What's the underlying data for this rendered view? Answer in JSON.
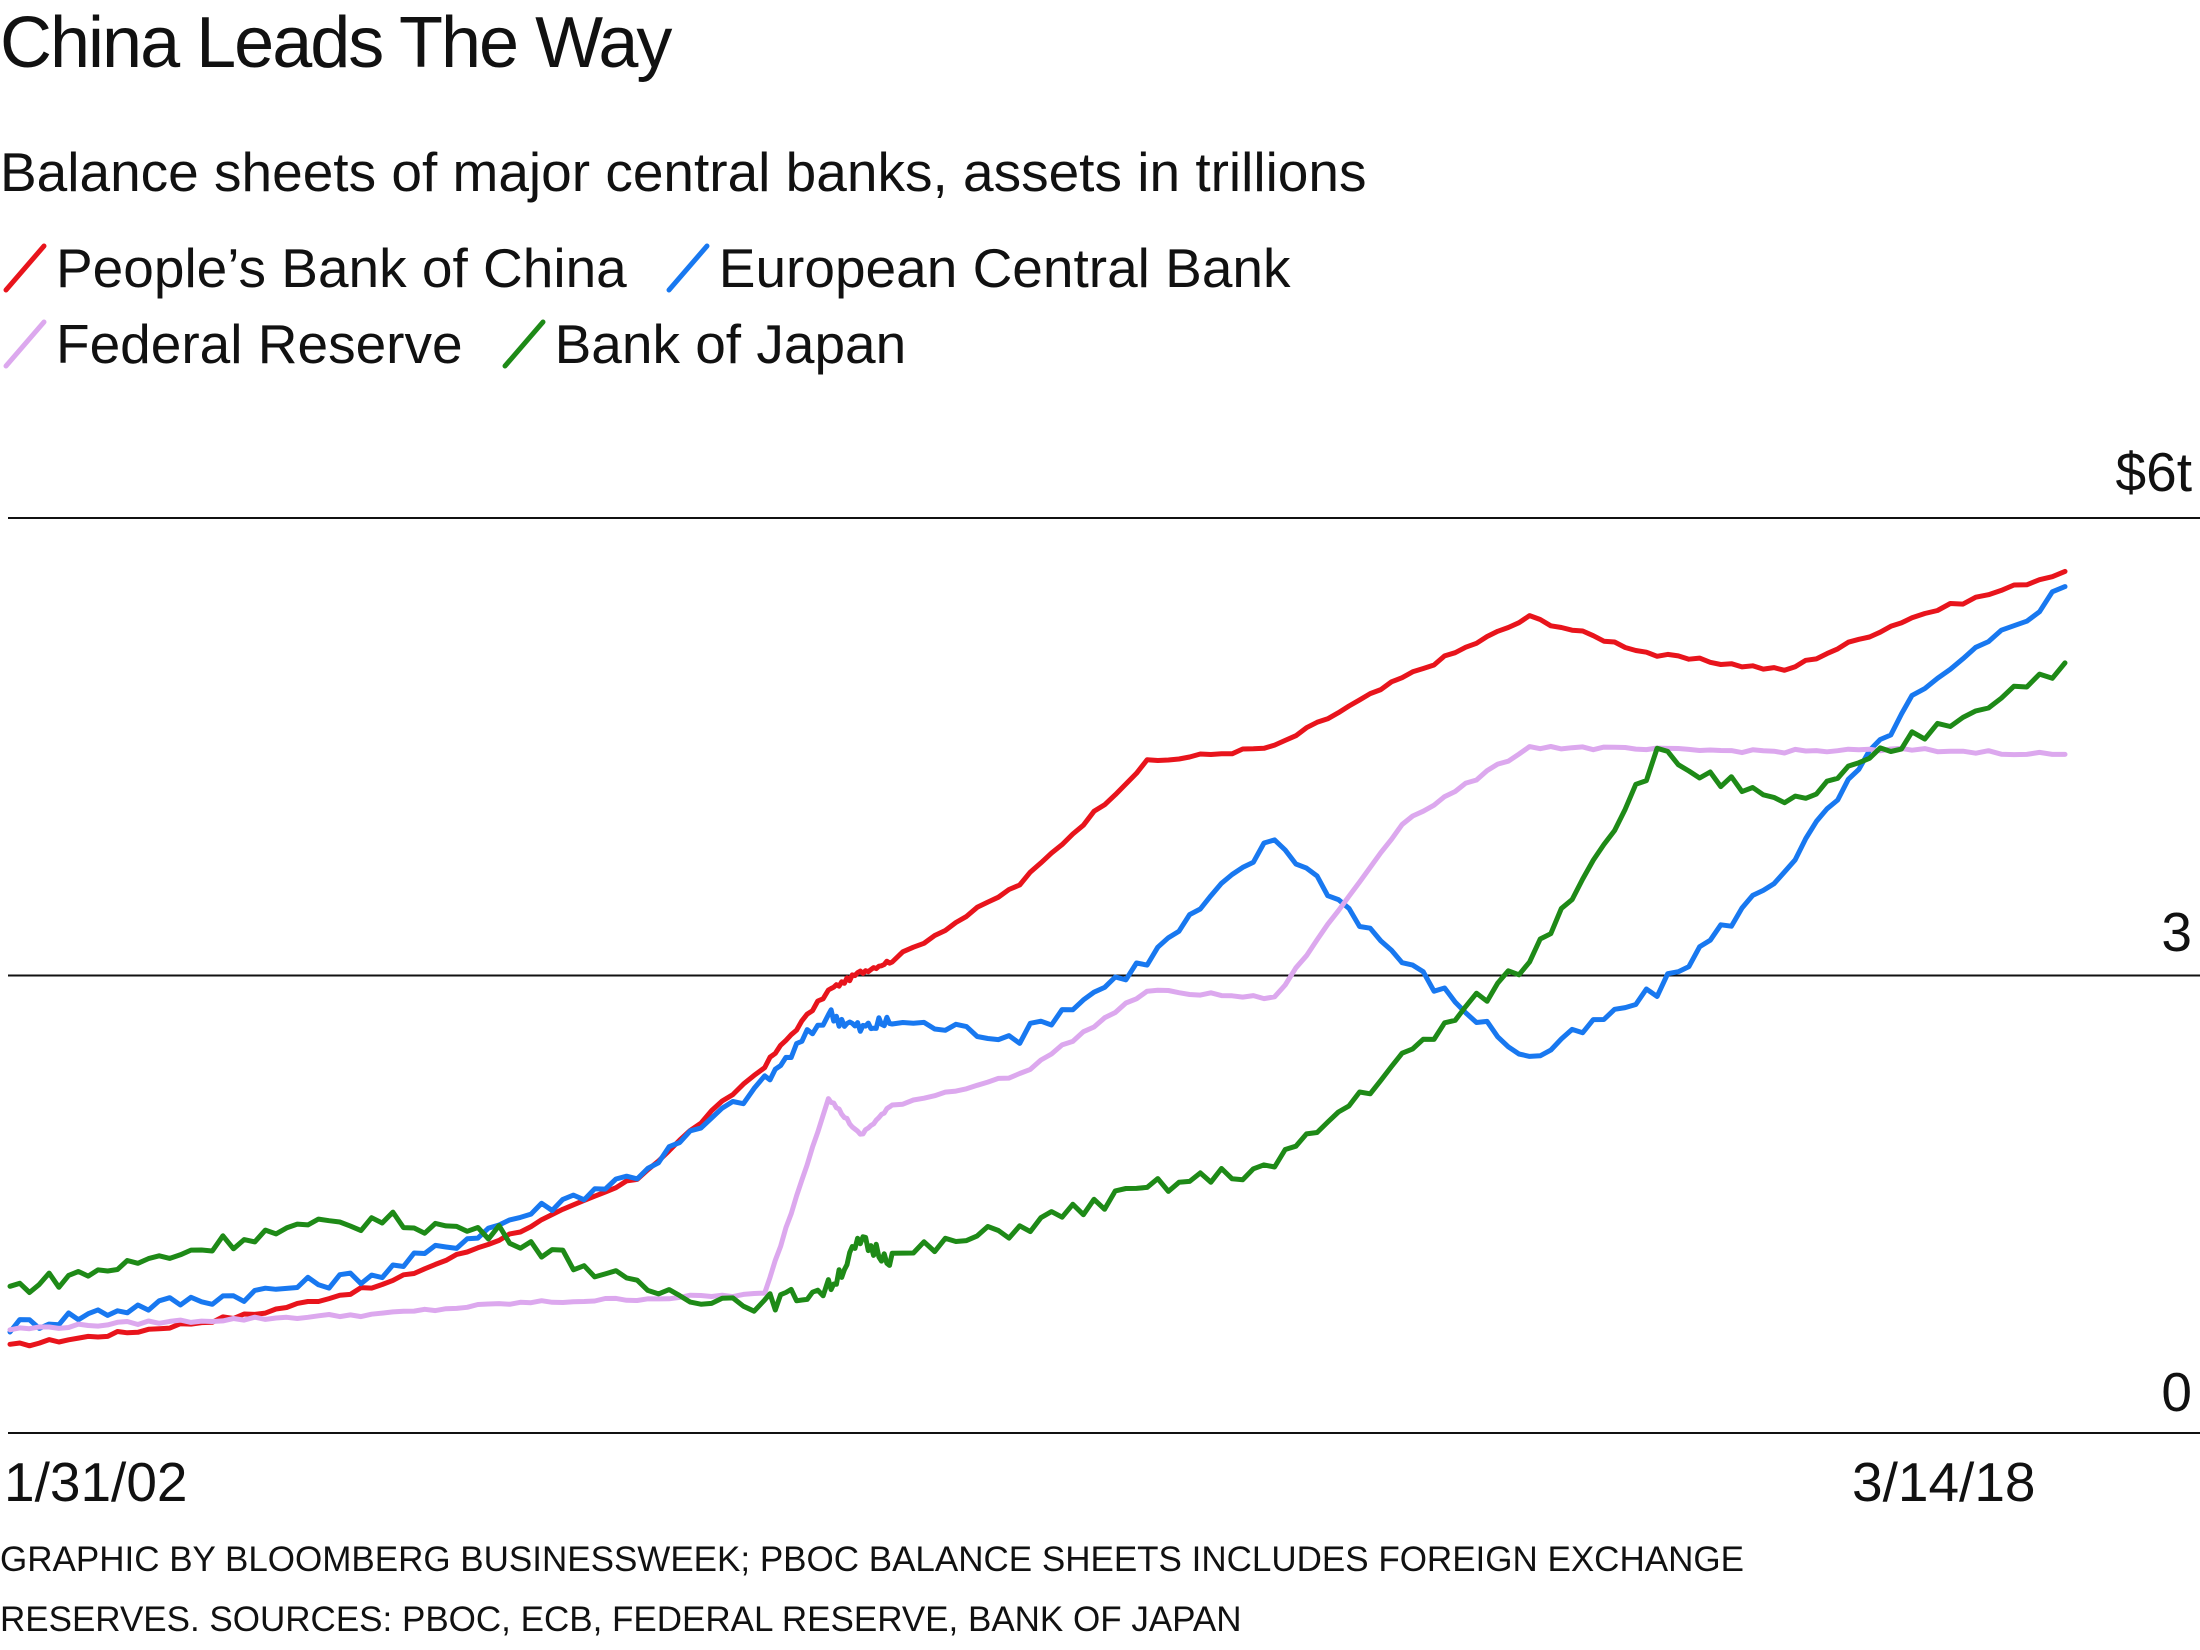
{
  "title": "China Leads The Way",
  "subtitle": "Balance sheets of major central banks, assets in trillions",
  "legend": [
    {
      "label": "People’s Bank of China",
      "color": "#e8141c"
    },
    {
      "label": "European Central Bank",
      "color": "#1878f0"
    },
    {
      "label": "Federal Reserve",
      "color": "#dca8ee"
    },
    {
      "label": "Bank of Japan",
      "color": "#1e8a17"
    }
  ],
  "y_ticks": {
    "top": "$6t",
    "mid": "3",
    "bottom": "0"
  },
  "x_ticks": {
    "start": "1/31/02",
    "end": "3/14/18"
  },
  "footer": {
    "line1": "GRAPHIC BY BLOOMBERG BUSINESSWEEK; PBOC BALANCE SHEETS INCLUDES FOREIGN EXCHANGE",
    "line2": "RESERVES. SOURCES: PBOC, ECB, FEDERAL RESERVE, BANK OF JAPAN"
  },
  "chart_data": {
    "type": "line",
    "title": "China Leads The Way",
    "subtitle": "Balance sheets of major central banks, assets in trillions",
    "xlabel": "",
    "ylabel": "",
    "x_range": [
      "2002-01-31",
      "2018-03-14"
    ],
    "ylim": [
      0,
      6
    ],
    "y_ticks": [
      0,
      3,
      6
    ],
    "y_unit": "$ trillions",
    "grid": "horizontal lines at 0, 3 and 6",
    "legend_position": "top-left",
    "x": [
      2002.08,
      2003,
      2004,
      2005,
      2006,
      2007,
      2008,
      2008.5,
      2008.75,
      2009,
      2010,
      2011,
      2012,
      2013,
      2014,
      2015,
      2016,
      2017,
      2018.2
    ],
    "series": [
      {
        "name": "People’s Bank of China",
        "color": "#e8141c",
        "values": [
          0.57,
          0.66,
          0.78,
          0.97,
          1.3,
          1.67,
          2.41,
          2.9,
          3.02,
          3.1,
          3.6,
          4.4,
          4.5,
          4.95,
          5.35,
          5.1,
          5.0,
          5.35,
          5.65
        ]
      },
      {
        "name": "European Central Bank",
        "color": "#1878f0",
        "values": [
          0.7,
          0.82,
          0.92,
          1.05,
          1.4,
          1.7,
          2.3,
          2.75,
          2.65,
          2.7,
          2.6,
          3.1,
          3.9,
          3.1,
          2.45,
          2.9,
          3.7,
          4.8,
          5.55
        ]
      },
      {
        "name": "Federal Reserve",
        "color": "#dca8ee",
        "values": [
          0.68,
          0.72,
          0.75,
          0.78,
          0.85,
          0.88,
          0.91,
          2.2,
          1.95,
          2.15,
          2.35,
          2.9,
          2.85,
          4.0,
          4.5,
          4.48,
          4.47,
          4.48,
          4.45
        ]
      },
      {
        "name": "Bank of Japan",
        "color": "#1e8a17",
        "values": [
          0.95,
          1.1,
          1.3,
          1.4,
          1.3,
          0.95,
          0.85,
          0.95,
          1.25,
          1.15,
          1.35,
          1.6,
          1.75,
          2.45,
          3.1,
          4.45,
          4.1,
          4.55,
          5.05
        ]
      }
    ]
  }
}
